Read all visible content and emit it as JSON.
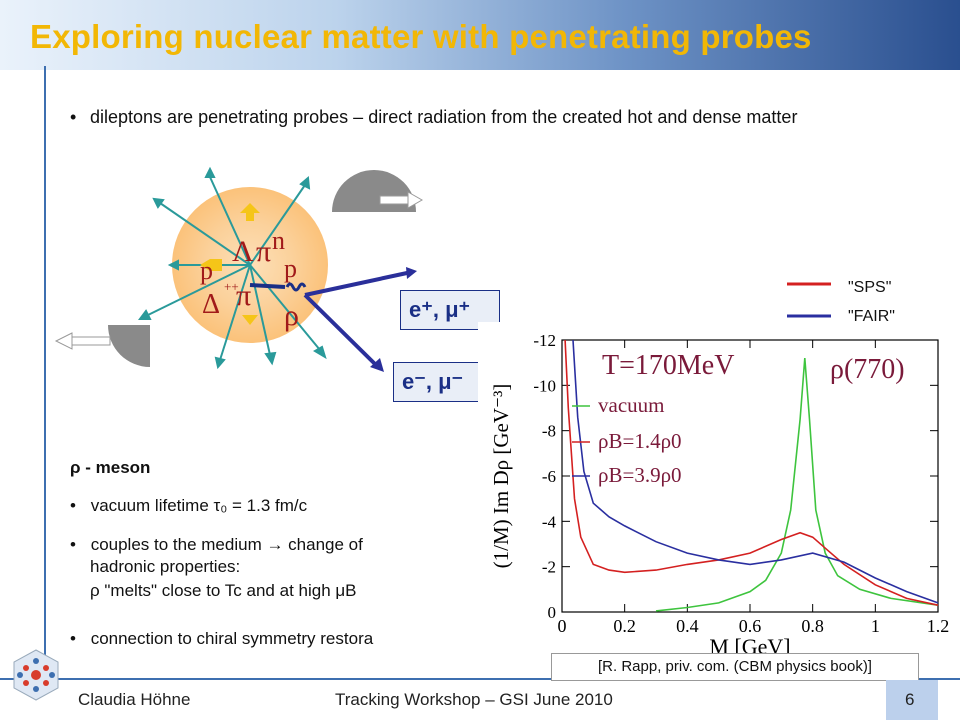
{
  "slide": {
    "title": "Exploring nuclear matter with penetrating probes",
    "bullet_top": "dileptons are penetrating probes – direct radiation from the created hot and dense matter",
    "bullet_symbol": "•",
    "collision_labels": {
      "lambda": "Λ",
      "pi1": "π",
      "n": "n",
      "p1": "p",
      "p2": "p",
      "plusplus": "++",
      "delta": "Δ",
      "pi2": "π",
      "rho": "ρ"
    },
    "lepton_plus": "e⁺, μ⁺",
    "lepton_minus": "e⁻, μ⁻",
    "rho_heading": "ρ - meson",
    "bullets": [
      "vacuum lifetime τ₀ = 1.3 fm/c",
      "couples to the medium → change of",
      "connection to chiral symmetry restora"
    ],
    "bullet2_line2": "hadronic properties:",
    "bullet2_line3": "ρ \"melts\" close to Tc and at high μB",
    "legend_top": {
      "sps": "\"SPS\"",
      "fair": "\"FAIR\""
    },
    "citation": "[R. Rapp, priv. com. (CBM physics book)]",
    "footer": {
      "author": "Claudia Höhne",
      "event": "Tracking Workshop – GSI June 2010",
      "page": "6"
    },
    "colors": {
      "title": "#f2b705",
      "box_text": "#1a2f86",
      "red": "#d42020",
      "blue": "#2a2fa0",
      "green": "#3ec43e"
    }
  },
  "chart_data": {
    "type": "line",
    "annotation_left": "T=170MeV",
    "annotation_right": "ρ(770)",
    "xlabel": "M [GeV]",
    "ylabel": "(1/M)  Im D",
    "ylabel_sub": "ρ",
    "ylabel_unit": "[GeV⁻³]",
    "xlim": [
      0,
      1.2
    ],
    "ylim": [
      -12,
      0
    ],
    "x_ticks": [
      0,
      0.2,
      0.4,
      0.6,
      0.8,
      1,
      1.2
    ],
    "x_tick_labels": [
      "0",
      "0.2",
      "0.4",
      "0.6",
      "0.8",
      "1",
      "1.2"
    ],
    "y_ticks": [
      -12,
      -10,
      -8,
      -6,
      -4,
      -2,
      0
    ],
    "y_tick_labels": [
      "-12",
      "-10",
      "-8",
      "-6",
      "-4",
      "-2",
      "0"
    ],
    "legend": [
      "vacuum",
      "ρB=1.4ρ0",
      "ρB=3.9ρ0"
    ],
    "series": [
      {
        "name": "vacuum",
        "color": "#3ec43e",
        "x": [
          0.3,
          0.4,
          0.5,
          0.6,
          0.65,
          0.7,
          0.73,
          0.76,
          0.775,
          0.79,
          0.81,
          0.84,
          0.88,
          0.95,
          1.05,
          1.2
        ],
        "y": [
          -0.05,
          -0.2,
          -0.4,
          -0.9,
          -1.4,
          -2.6,
          -4.5,
          -8.5,
          -11.2,
          -8.5,
          -4.5,
          -2.6,
          -1.6,
          -1.0,
          -0.6,
          -0.3
        ]
      },
      {
        "name": "ρB=1.4ρ0",
        "color": "#d42020",
        "x": [
          0.01,
          0.02,
          0.04,
          0.06,
          0.1,
          0.15,
          0.2,
          0.3,
          0.4,
          0.5,
          0.6,
          0.7,
          0.76,
          0.8,
          0.85,
          0.9,
          1.0,
          1.1,
          1.2
        ],
        "y": [
          -12,
          -9.0,
          -5.0,
          -3.3,
          -2.1,
          -1.85,
          -1.75,
          -1.85,
          -2.1,
          -2.3,
          -2.6,
          -3.2,
          -3.5,
          -3.3,
          -2.7,
          -2.1,
          -1.2,
          -0.6,
          -0.3
        ]
      },
      {
        "name": "ρB=3.9ρ0",
        "color": "#2a2fa0",
        "x": [
          0.035,
          0.05,
          0.07,
          0.1,
          0.15,
          0.2,
          0.3,
          0.4,
          0.5,
          0.6,
          0.7,
          0.8,
          0.9,
          1.0,
          1.1,
          1.2
        ],
        "y": [
          -12,
          -8.6,
          -6.2,
          -4.8,
          -4.2,
          -3.8,
          -3.1,
          -2.6,
          -2.3,
          -2.1,
          -2.3,
          -2.6,
          -2.2,
          -1.5,
          -0.9,
          -0.4
        ]
      }
    ]
  }
}
